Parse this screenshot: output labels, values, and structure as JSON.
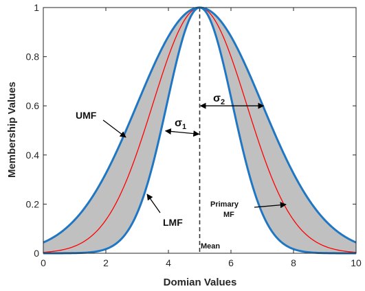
{
  "chart_data": {
    "type": "area",
    "xlabel": "Domian Values",
    "ylabel": "Membership Values",
    "xlim": [
      0,
      10
    ],
    "ylim": [
      0,
      1
    ],
    "x_ticks": [
      0,
      2,
      4,
      6,
      8,
      10
    ],
    "y_ticks": [
      0,
      0.2,
      0.4,
      0.6,
      0.8,
      1
    ],
    "x_tick_labels": [
      "0",
      "2",
      "4",
      "6",
      "8",
      "10"
    ],
    "y_tick_labels": [
      "0",
      "0.2",
      "0.4",
      "0.6",
      "0.8",
      "1"
    ],
    "grid": false,
    "mean": 5,
    "series": [
      {
        "name": "UMF",
        "kind": "gaussian",
        "mean": 5,
        "sigma": 2,
        "color": "#1f77c4"
      },
      {
        "name": "Primary MF",
        "kind": "gaussian",
        "mean": 5,
        "sigma": 1.5,
        "color": "#ff0000"
      },
      {
        "name": "LMF",
        "kind": "gaussian",
        "mean": 5,
        "sigma": 1.05,
        "color": "#1f77c4"
      }
    ],
    "band_color": "#c0c0c0",
    "annotations": {
      "umf": "UMF",
      "lmf": "LMF",
      "primary_line1": "Primary",
      "primary_line2": "MF",
      "mean": "Mean",
      "sigma1_base": "σ",
      "sigma1_sub": "1",
      "sigma2_base": "σ",
      "sigma2_sub": "2"
    }
  }
}
